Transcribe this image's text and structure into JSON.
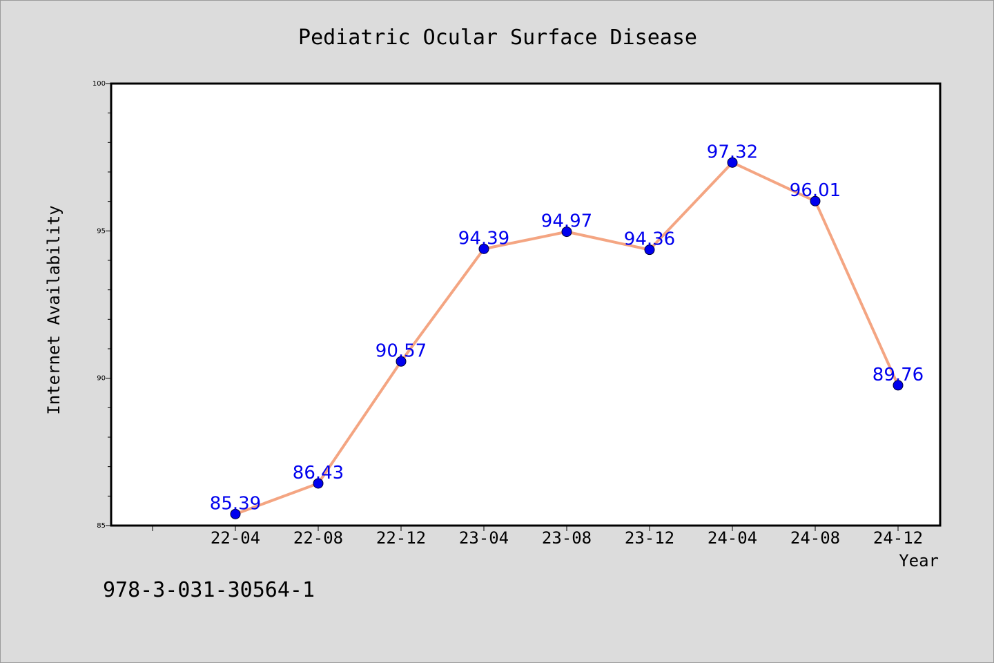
{
  "chart_data": {
    "type": "line",
    "title": "Pediatric Ocular Surface Disease",
    "xlabel": "Year",
    "ylabel": "Internet Availability",
    "categories": [
      "22-04",
      "22-08",
      "22-12",
      "23-04",
      "23-08",
      "23-12",
      "24-04",
      "24-08",
      "24-12"
    ],
    "series": [
      {
        "values": [
          85.39,
          86.43,
          90.57,
          94.39,
          94.97,
          94.36,
          97.32,
          96.01,
          89.76
        ],
        "labels": [
          "85.39",
          "86.43",
          "90.57",
          "94.39",
          "94.97",
          "94.36",
          "97.32",
          "96.01",
          "89.76"
        ]
      }
    ],
    "ylim": [
      85,
      100
    ],
    "yticks": [
      "85",
      "90",
      "95",
      "100"
    ],
    "grid": false,
    "legend": "none",
    "colors": {
      "line": "#f4a582",
      "marker": "#0000ee",
      "label": "#0000ee",
      "background": "#dcdcdc",
      "plot_background": "#ffffff"
    }
  },
  "footer": {
    "isbn": "978-3-031-30564-1"
  }
}
